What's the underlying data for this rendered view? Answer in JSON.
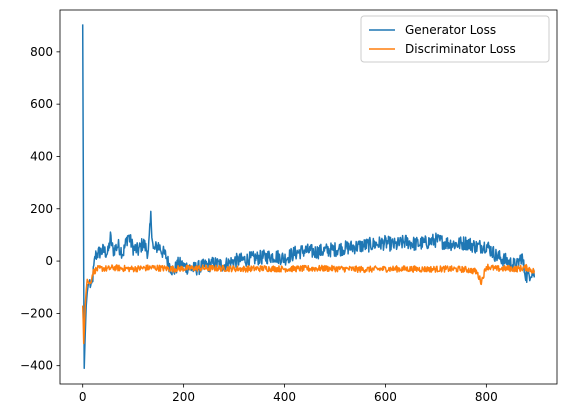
{
  "chart_data": {
    "type": "line",
    "title": "",
    "xlabel": "",
    "ylabel": "",
    "xlim": [
      -45,
      940
    ],
    "ylim": [
      -470,
      960
    ],
    "xticks": [
      0,
      200,
      400,
      600,
      800
    ],
    "yticks": [
      -400,
      -200,
      0,
      200,
      400,
      600,
      800
    ],
    "grid": false,
    "legend_position": "upper right",
    "series": [
      {
        "name": "Generator Loss",
        "color": "#1f77b4",
        "x": [
          0,
          1,
          2,
          3,
          5,
          7,
          9,
          11,
          14,
          17,
          20,
          25,
          30,
          40,
          50,
          55,
          60,
          70,
          80,
          90,
          100,
          110,
          120,
          130,
          135,
          140,
          150,
          160,
          165,
          170,
          180,
          190,
          200,
          220,
          240,
          260,
          280,
          300,
          320,
          340,
          360,
          380,
          400,
          420,
          440,
          460,
          480,
          500,
          520,
          540,
          560,
          580,
          600,
          620,
          640,
          660,
          680,
          700,
          720,
          740,
          760,
          780,
          800,
          820,
          840,
          860,
          870,
          875,
          880,
          890,
          895
        ],
        "values": [
          905,
          420,
          -60,
          -410,
          -280,
          -170,
          -120,
          -90,
          -80,
          -110,
          -60,
          20,
          30,
          40,
          30,
          90,
          40,
          60,
          30,
          100,
          50,
          40,
          70,
          30,
          170,
          40,
          60,
          30,
          20,
          -10,
          -40,
          -10,
          -20,
          -30,
          -20,
          -10,
          -15,
          0,
          5,
          10,
          15,
          20,
          10,
          30,
          40,
          35,
          40,
          45,
          50,
          55,
          60,
          65,
          70,
          60,
          75,
          65,
          70,
          80,
          70,
          65,
          70,
          55,
          60,
          20,
          0,
          -20,
          20,
          -30,
          -60,
          -40,
          -50
        ]
      },
      {
        "name": "Discriminator Loss",
        "color": "#ff7f0e",
        "x": [
          0,
          1,
          2,
          3,
          5,
          7,
          9,
          11,
          14,
          17,
          20,
          25,
          30,
          40,
          50,
          60,
          80,
          100,
          120,
          140,
          160,
          180,
          200,
          240,
          280,
          320,
          360,
          400,
          440,
          480,
          520,
          560,
          600,
          640,
          680,
          720,
          760,
          780,
          790,
          800,
          820,
          840,
          860,
          880,
          895
        ],
        "values": [
          -170,
          -230,
          -315,
          -270,
          -170,
          -110,
          -70,
          -80,
          -90,
          -70,
          -45,
          -35,
          -30,
          -28,
          -30,
          -25,
          -28,
          -30,
          -27,
          -25,
          -28,
          -30,
          -28,
          -27,
          -28,
          -30,
          -28,
          -30,
          -29,
          -28,
          -30,
          -32,
          -30,
          -30,
          -31,
          -30,
          -32,
          -40,
          -80,
          -20,
          -30,
          -28,
          -30,
          -25,
          -40
        ]
      }
    ]
  }
}
